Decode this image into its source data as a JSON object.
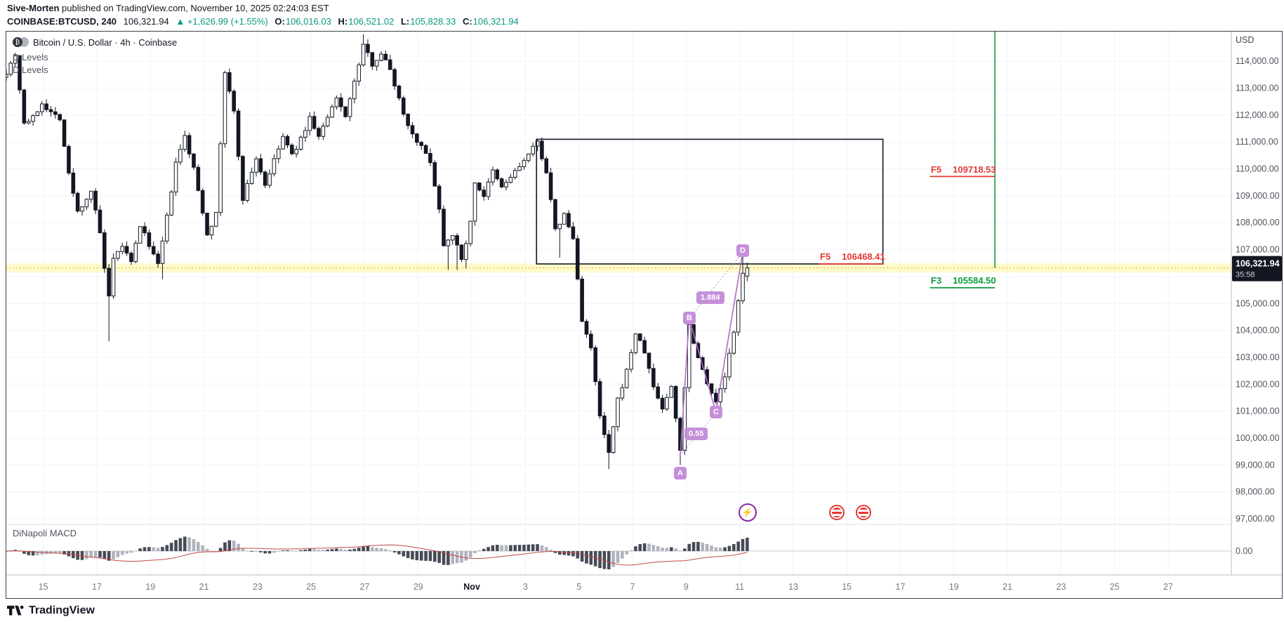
{
  "header": {
    "author": "Sive-Morten",
    "publish_info": "published on TradingView.com, November 10, 2025 02:24:03 EST",
    "quote": {
      "symbol_interval": "COINBASE:BTCUSD, 240",
      "last": "106,321.94",
      "change": "▲ +1,626.99 (+1.55%)",
      "open_label": "O:",
      "open": "106,016.03",
      "high_label": "H:",
      "high": "106,521.02",
      "low_label": "L:",
      "low": "105,828.33",
      "close_label": "C:",
      "close": "106,321.94"
    }
  },
  "chart": {
    "legend": {
      "title": "Bitcoin / U.S. Dollar · 4h · Coinbase",
      "indicators": [
        "D Levels",
        "D Levels"
      ],
      "macd_indicator": "DiNapoli MACD"
    },
    "price_axis_currency": "USD",
    "price_badge": {
      "price": "106,321.94",
      "countdown": "35:58"
    },
    "fib_labels": [
      {
        "level": "F5",
        "value": "109718.53"
      },
      {
        "level": "F5",
        "value": "106468.41"
      },
      {
        "level": "F3",
        "value": "105584.50"
      }
    ],
    "pattern_labels": {
      "a": "A",
      "b": "B",
      "c": "C",
      "d": "D",
      "ratio_ac": "0.55",
      "ratio_bd": "1.884"
    },
    "footer_logo": "TradingView",
    "colors": {
      "up": "#ffffff",
      "down": "#131722",
      "accent_red": "#e53935",
      "accent_green": "#0f9d42",
      "pattern_purple": "#b06ac4",
      "band_yellow": "#fff59d",
      "change_green": "#089981"
    }
  },
  "chart_data": {
    "type": "candlestick",
    "title": "Bitcoin / U.S. Dollar · 4h · Coinbase",
    "symbol": "COINBASE:BTCUSD",
    "interval": "4h",
    "bars_total": 167,
    "current_price": 106321.94,
    "price_axis": {
      "max": 114000,
      "min": 97000,
      "tick_step": 1000,
      "labels": [
        "114,000.00",
        "113,000.00",
        "112,000.00",
        "111,000.00",
        "110,000.00",
        "109,000.00",
        "108,000.00",
        "107,000.00",
        "106,000.00",
        "105,000.00",
        "104,000.00",
        "103,000.00",
        "102,000.00",
        "101,000.00",
        "100,000.00",
        "99,000.00",
        "98,000.00",
        "97,000.00"
      ],
      "macd_zero_label": "0.00"
    },
    "time_axis": {
      "labels": [
        "15",
        "17",
        "19",
        "21",
        "23",
        "25",
        "27",
        "29",
        "Nov",
        "3",
        "5",
        "7",
        "9",
        "11",
        "13",
        "15",
        "17",
        "19",
        "21",
        "23",
        "25",
        "27"
      ],
      "bars_per_tick": 12
    },
    "pivots": [
      [
        0,
        113600
      ],
      [
        2,
        114250
      ],
      [
        4,
        111700
      ],
      [
        6,
        111900
      ],
      [
        8,
        112450
      ],
      [
        10,
        112100
      ],
      [
        12,
        111900
      ],
      [
        14,
        109800
      ],
      [
        16,
        108400
      ],
      [
        18,
        108900
      ],
      [
        19,
        109200
      ],
      [
        21,
        107600
      ],
      [
        22,
        106300
      ],
      [
        23,
        105200
      ],
      [
        24,
        106600
      ],
      [
        26,
        107150
      ],
      [
        28,
        106500
      ],
      [
        30,
        107900
      ],
      [
        32,
        107200
      ],
      [
        34,
        106400
      ],
      [
        36,
        108200
      ],
      [
        38,
        110200
      ],
      [
        40,
        111200
      ],
      [
        42,
        110000
      ],
      [
        44,
        108400
      ],
      [
        45,
        107600
      ],
      [
        47,
        108300
      ],
      [
        49,
        113600
      ],
      [
        51,
        112100
      ],
      [
        53,
        108900
      ],
      [
        56,
        110400
      ],
      [
        58,
        109400
      ],
      [
        60,
        110300
      ],
      [
        62,
        111200
      ],
      [
        64,
        110500
      ],
      [
        66,
        111100
      ],
      [
        68,
        111900
      ],
      [
        70,
        111200
      ],
      [
        72,
        111900
      ],
      [
        74,
        112600
      ],
      [
        76,
        112000
      ],
      [
        78,
        113200
      ],
      [
        80,
        114600
      ],
      [
        82,
        113900
      ],
      [
        84,
        114300
      ],
      [
        86,
        113700
      ],
      [
        88,
        112600
      ],
      [
        90,
        111600
      ],
      [
        93,
        110800
      ],
      [
        95,
        110300
      ],
      [
        97,
        108500
      ],
      [
        98,
        107200
      ],
      [
        100,
        107600
      ],
      [
        102,
        106600
      ],
      [
        104,
        108000
      ],
      [
        105,
        109500
      ],
      [
        107,
        109000
      ],
      [
        109,
        109900
      ],
      [
        111,
        109300
      ],
      [
        113,
        109700
      ],
      [
        116,
        110300
      ],
      [
        119,
        111000
      ],
      [
        121,
        109900
      ],
      [
        123,
        107700
      ],
      [
        125,
        108300
      ],
      [
        127,
        107400
      ],
      [
        129,
        104400
      ],
      [
        131,
        103300
      ],
      [
        133,
        100800
      ],
      [
        135,
        99400
      ],
      [
        137,
        101400
      ],
      [
        139,
        102500
      ],
      [
        141,
        103900
      ],
      [
        143,
        103200
      ],
      [
        145,
        101900
      ],
      [
        147,
        101100
      ],
      [
        149,
        101900
      ],
      [
        151,
        99600
      ],
      [
        153,
        104200
      ],
      [
        155,
        103000
      ],
      [
        157,
        102100
      ],
      [
        159,
        101300
      ],
      [
        161,
        102300
      ],
      [
        163,
        103900
      ],
      [
        165,
        106200
      ],
      [
        166,
        106321.94
      ]
    ],
    "wick_overrides": {
      "23": {
        "low": 103600
      },
      "35": {
        "low": 105900
      },
      "80": {
        "high": 115000
      },
      "99": {
        "low": 106250
      },
      "101": {
        "low": 106250
      },
      "103": {
        "low": 106300
      },
      "124": {
        "low": 106700
      },
      "135": {
        "low": 98850
      },
      "151": {
        "low": 99000
      },
      "153": {
        "high": 104450
      },
      "165": {
        "high": 106900
      }
    },
    "last_candle": {
      "open": 106016.03,
      "high": 106521.02,
      "low": 105828.33,
      "close": 106321.94
    },
    "drawings": {
      "rectangle": {
        "from_bar": 118.8,
        "to_bar": 196.4,
        "top_price": 111100,
        "bottom_price": 106468.41
      },
      "fib_levels": [
        {
          "level": "F5",
          "value": 109718.53,
          "price": 109718.53,
          "color": "#e53935",
          "x1_bar": 206.9,
          "x2_bar": 221.5
        },
        {
          "level": "F5",
          "value": 106468.41,
          "price": 106468.41,
          "color": "#e53935",
          "x1_bar": 182.0,
          "x2_bar": 196.4
        },
        {
          "level": "F3",
          "value": 105584.5,
          "price": 105584.5,
          "color": "#0f9d42",
          "x1_bar": 206.9,
          "x2_bar": 221.5
        }
      ],
      "vertical_line": {
        "bar": 221.5,
        "to_price": 106321.94,
        "color": "#0f9d42"
      },
      "highlight_band": {
        "price": 106321.94,
        "color": "#fff59d"
      },
      "pattern": {
        "type": "ABCD",
        "points": {
          "A": {
            "bar": 151,
            "price": 99350
          },
          "B": {
            "bar": 153,
            "price": 104450
          },
          "C": {
            "bar": 159,
            "price": 100950
          },
          "D": {
            "bar": 165,
            "price": 106900
          }
        },
        "ratios": [
          {
            "text": "0.55",
            "between": [
              "A",
              "C"
            ]
          },
          {
            "text": "1.884",
            "between": [
              "B",
              "D"
            ]
          }
        ]
      }
    },
    "macd_pane": {
      "indicator": "DiNapoli MACD",
      "zero_label": "0.00"
    }
  }
}
